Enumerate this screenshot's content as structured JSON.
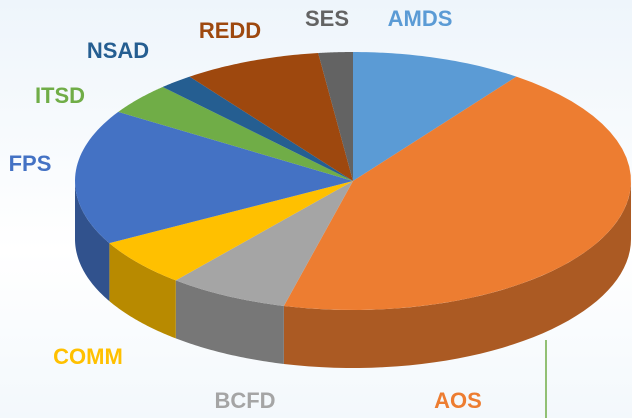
{
  "chart_data": {
    "type": "pie3d",
    "categories": [
      "AMDS",
      "AOS",
      "BCFD",
      "COMM",
      "FPS",
      "ITSD",
      "NSAD",
      "REDD",
      "SES"
    ],
    "values": [
      10,
      44,
      7,
      6,
      17,
      4,
      2,
      8,
      2
    ],
    "colors": [
      "#5b9bd5",
      "#ed7d31",
      "#a5a5a5",
      "#ffc000",
      "#4472c4",
      "#70ad47",
      "#255e91",
      "#9e480e",
      "#636363"
    ]
  }
}
